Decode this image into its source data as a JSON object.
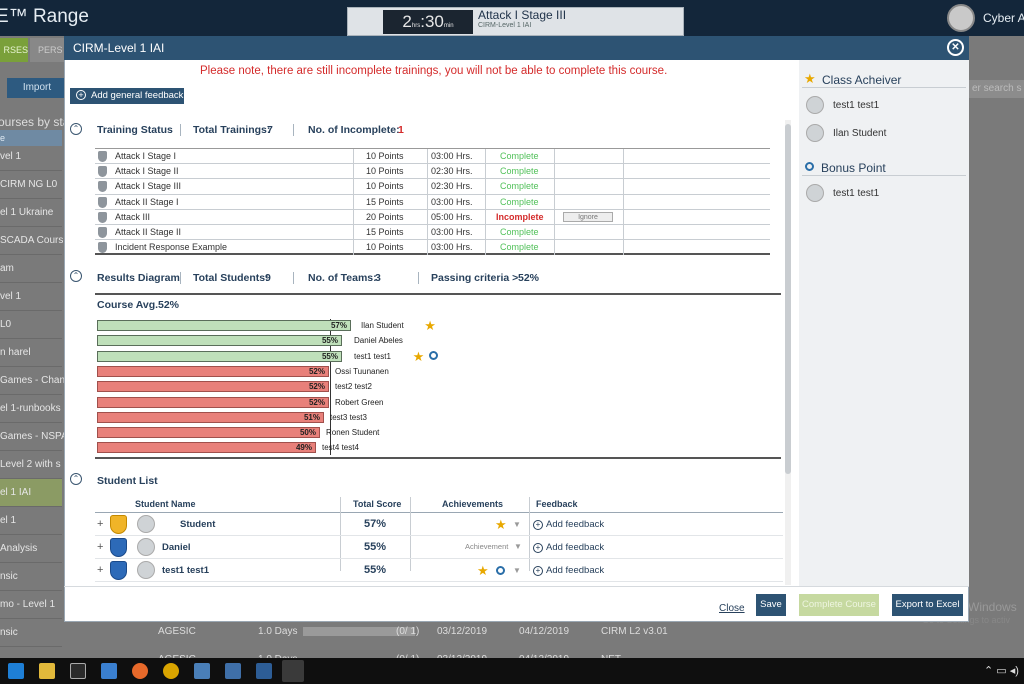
{
  "app": {
    "title": "E™ Range",
    "user_name": "Cyber A",
    "timer_hours": "2",
    "timer_hours_unit": "hrs",
    "timer_minutes": "30",
    "timer_minutes_unit": "min",
    "stage_title": "Attack I Stage III",
    "stage_subtitle": "CIRM-Level 1 IAI"
  },
  "background": {
    "tab_courses": "RSES",
    "tab_person": "PERS",
    "import_label": "Import",
    "courses_by": "ourses by sta",
    "search_placeholder": "er search s",
    "header_col": "e",
    "rows": [
      "vel 1",
      "CIRM NG L0",
      "el 1 Ukraine",
      "SCADA Cours",
      "am",
      "vel 1",
      "L0",
      "n harel",
      "Games - Chang",
      "el 1-runbooks",
      "Games - NSPA",
      "Level 2 with s",
      "el 1 IAI",
      "el 1",
      "Analysis",
      "nsic",
      "mo - Level 1",
      "nsic"
    ],
    "row1": {
      "org": "AGESIC",
      "duration": "1.0 Days",
      "progress": "(0/ 1)",
      "start": "03/12/2019",
      "end": "04/12/2019",
      "product": "CIRM L2 v3.01"
    },
    "row2": {
      "org": "AGESIC",
      "duration": "1.0 Days",
      "progress": "(0/ 1)",
      "start": "03/12/2019",
      "end": "04/12/2019",
      "product": "NET"
    },
    "watermark1": "Activate Windows",
    "watermark2": "Go to Settings to activ"
  },
  "modal": {
    "title": "CIRM-Level 1 IAI",
    "warning": "Please note, there are still incomplete trainings, you will not be able to complete this course.",
    "feedback_button": "Add general feedback",
    "training": {
      "title": "Training Status",
      "total_label": "Total Trainings:",
      "total_value": "7",
      "incomplete_label": "No. of Incomplete:",
      "incomplete_value": "1",
      "rows": [
        {
          "name": "Attack I Stage I",
          "points": "10 Points",
          "time": "03:00 Hrs.",
          "status": "Complete"
        },
        {
          "name": "Attack I Stage II",
          "points": "10 Points",
          "time": "02:30 Hrs.",
          "status": "Complete"
        },
        {
          "name": "Attack I Stage III",
          "points": "10 Points",
          "time": "02:30 Hrs.",
          "status": "Complete"
        },
        {
          "name": "Attack II Stage I",
          "points": "15 Points",
          "time": "03:00 Hrs.",
          "status": "Complete"
        },
        {
          "name": "Attack III",
          "points": "20 Points",
          "time": "05:00 Hrs.",
          "status": "Incomplete",
          "action": "Ignore"
        },
        {
          "name": "Attack II Stage II",
          "points": "15 Points",
          "time": "03:00 Hrs.",
          "status": "Complete"
        },
        {
          "name": "Incident Response Example",
          "points": "10 Points",
          "time": "03:00 Hrs.",
          "status": "Complete"
        }
      ]
    },
    "results": {
      "title": "Results Diagram",
      "students_label": "Total Students:",
      "students_value": "9",
      "teams_label": "No. of Teams:",
      "teams_value": "3",
      "passing_label": "Passing criteria >",
      "passing_value": "52%",
      "avg_label": "Course Avg.",
      "avg_value": "52%",
      "bars": [
        {
          "label": "57%",
          "value": 57,
          "name": "Ilan Student",
          "status": "pass",
          "star": true,
          "magnifier": false
        },
        {
          "label": "55%",
          "value": 55,
          "name": "Daniel Abeles",
          "status": "pass",
          "star": false,
          "magnifier": false
        },
        {
          "label": "55%",
          "value": 55,
          "name": "test1 test1",
          "status": "pass",
          "star": true,
          "magnifier": true
        },
        {
          "label": "52%",
          "value": 52,
          "name": "Ossi Tuunanen",
          "status": "fail",
          "star": false,
          "magnifier": false
        },
        {
          "label": "52%",
          "value": 52,
          "name": "test2 test2",
          "status": "fail",
          "star": false,
          "magnifier": false
        },
        {
          "label": "52%",
          "value": 52,
          "name": "Robert Green",
          "status": "fail",
          "star": false,
          "magnifier": false
        },
        {
          "label": "51%",
          "value": 51,
          "name": "test3 test3",
          "status": "fail",
          "star": false,
          "magnifier": false
        },
        {
          "label": "50%",
          "value": 50,
          "name": "Ronen Student",
          "status": "fail",
          "star": false,
          "magnifier": false
        },
        {
          "label": "49%",
          "value": 49,
          "name": "test4 test4",
          "status": "fail",
          "star": false,
          "magnifier": false
        }
      ]
    },
    "students": {
      "title": "Student List",
      "headers": {
        "name": "Student Name",
        "score": "Total Score",
        "achievements": "Achievements",
        "feedback": "Feedback"
      },
      "rows": [
        {
          "name": "Student",
          "score": "57%",
          "achievement": "",
          "feedback": "Add feedback",
          "badge": "gold"
        },
        {
          "name": "Daniel",
          "score": "55%",
          "achievement": "Achievement",
          "feedback": "Add feedback",
          "badge": "blue"
        },
        {
          "name": "test1 test1",
          "score": "55%",
          "achievement": "",
          "feedback": "Add feedback",
          "badge": "blue"
        }
      ]
    },
    "side": {
      "class_title": "Class Acheiver",
      "class_users": [
        "test1 test1",
        "Ilan Student"
      ],
      "bonus_title": "Bonus Point",
      "bonus_users": [
        "test1 test1"
      ]
    },
    "footer": {
      "close": "Close",
      "save": "Save",
      "complete": "Complete Course",
      "export": "Export to Excel"
    }
  }
}
